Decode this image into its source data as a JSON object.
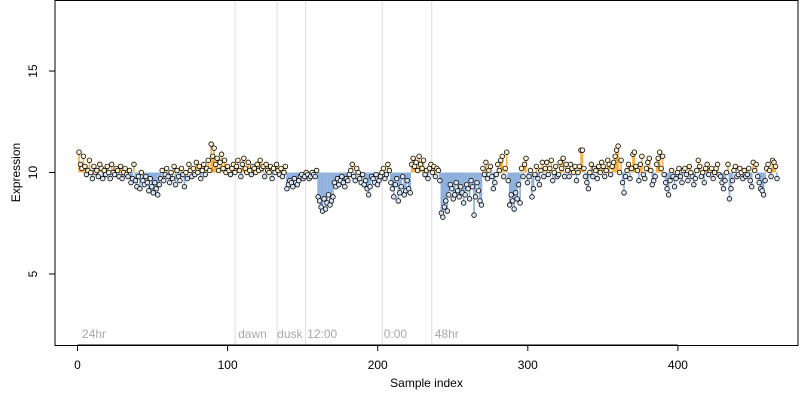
{
  "chart_data": {
    "type": "scatter",
    "title": "",
    "xlabel": "Sample index",
    "ylabel": "Expression",
    "xlim": [
      -15,
      480
    ],
    "ylim": [
      1.5,
      18.5
    ],
    "x_ticks": [
      0,
      100,
      200,
      300,
      400
    ],
    "y_ticks": [
      5,
      10,
      15
    ],
    "x_tick_labels": [
      "0",
      "100",
      "200",
      "300",
      "400"
    ],
    "y_tick_labels": [
      "5",
      "10",
      "15"
    ],
    "grid": false,
    "legend": "none",
    "colors": {
      "above": "#f4b14a",
      "below": "#8fb0dc",
      "point_above": "#fff2cf",
      "point_below": "#dbe7f7",
      "point_edge": "#000000",
      "divider": "#dddddd",
      "annotation": "#a8a8a8"
    },
    "baseline": 10,
    "dividers": [
      105,
      133,
      152,
      203,
      236
    ],
    "annotations": [
      {
        "x": 3,
        "text": "24hr"
      },
      {
        "x": 107,
        "text": "dawn"
      },
      {
        "x": 133,
        "text": "dusk"
      },
      {
        "x": 153,
        "text": "12:00"
      },
      {
        "x": 204,
        "text": "0:00"
      },
      {
        "x": 238,
        "text": "48hr"
      }
    ],
    "series": [
      {
        "x_start": 1,
        "x_end": 466,
        "y": [
          11.0,
          10.4,
          10.2,
          10.8,
          10.3,
          9.9,
          10.1,
          10.6,
          10.0,
          9.7,
          10.3,
          10.0,
          10.1,
          9.8,
          10.4,
          10.2,
          9.7,
          10.1,
          9.9,
          10.3,
          10.0,
          9.7,
          10.4,
          10.0,
          9.9,
          10.2,
          10.1,
          9.8,
          10.3,
          9.7,
          10.0,
          10.2,
          9.9,
          9.8,
          10.1,
          9.5,
          9.7,
          10.4,
          9.6,
          9.3,
          9.8,
          9.2,
          10.0,
          9.6,
          9.4,
          9.8,
          9.5,
          9.1,
          9.7,
          9.3,
          9.0,
          9.5,
          9.2,
          8.9,
          9.4,
          9.7,
          10.1,
          9.6,
          9.9,
          10.2,
          9.8,
          9.5,
          10.0,
          9.7,
          10.3,
          9.4,
          10.1,
          9.8,
          9.6,
          10.2,
          9.9,
          9.3,
          10.0,
          9.7,
          10.4,
          10.1,
          9.8,
          10.2,
          9.9,
          10.5,
          10.0,
          10.3,
          9.7,
          10.1,
          10.4,
          9.9,
          10.2,
          10.6,
          10.1,
          11.4,
          10.8,
          11.2,
          10.4,
          10.7,
          10.1,
          10.5,
          10.9,
          10.2,
          10.6,
          10.0,
          10.3,
          10.1,
          9.9,
          10.2,
          10.4,
          10.0,
          10.3,
          10.6,
          10.1,
          9.8,
          10.4,
          10.7,
          10.2,
          10.0,
          10.5,
          10.1,
          9.9,
          10.3,
          10.2,
          10.0,
          10.4,
          10.1,
          10.6,
          10.2,
          10.3,
          9.8,
          10.4,
          10.1,
          10.0,
          10.3,
          9.7,
          10.2,
          10.0,
          10.4,
          10.1,
          9.9,
          10.2,
          9.8,
          10.0,
          10.3,
          9.2,
          9.4,
          9.6,
          9.5,
          9.3,
          9.7,
          9.5,
          9.4,
          9.6,
          9.8,
          9.9,
          9.7,
          9.8,
          10.0,
          9.9,
          9.7,
          9.8,
          10.0,
          9.9,
          9.8,
          10.1,
          8.8,
          8.6,
          8.3,
          8.1,
          8.7,
          8.2,
          8.5,
          8.9,
          8.4,
          8.6,
          8.8,
          9.5,
          9.3,
          9.7,
          9.4,
          9.6,
          9.8,
          9.5,
          9.3,
          9.7,
          9.6,
          9.9,
          10.1,
          10.4,
          9.8,
          9.6,
          10.2,
          10.0,
          9.7,
          9.5,
          9.9,
          9.4,
          9.6,
          9.2,
          8.9,
          9.3,
          9.8,
          9.7,
          9.5,
          9.9,
          9.4,
          9.6,
          9.8,
          10.0,
          10.2,
          9.7,
          9.9,
          10.4,
          10.1,
          9.5,
          9.2,
          8.8,
          9.4,
          9.7,
          8.6,
          9.0,
          9.3,
          9.8,
          8.9,
          9.1,
          9.6,
          9.2,
          9.0,
          10.4,
          10.7,
          10.3,
          10.5,
          10.1,
          10.8,
          10.4,
          10.2,
          10.6,
          9.9,
          10.1,
          9.7,
          10.2,
          10.4,
          10.0,
          10.3,
          9.8,
          10.2,
          10.1,
          9.6,
          8.0,
          7.8,
          8.3,
          8.6,
          8.1,
          8.9,
          9.4,
          9.2,
          8.7,
          8.9,
          9.5,
          9.1,
          8.8,
          9.3,
          9.0,
          8.5,
          8.9,
          9.4,
          9.2,
          8.7,
          9.6,
          9.3,
          7.9,
          8.8,
          9.5,
          9.1,
          8.6,
          8.4,
          10.2,
          9.9,
          10.5,
          9.7,
          10.1,
          10.3,
          9.8,
          9.2,
          9.5,
          9.9,
          10.4,
          10.1,
          10.6,
          10.8,
          9.8,
          10.2,
          11.0,
          9.6,
          8.4,
          8.9,
          8.6,
          8.2,
          9.0,
          8.7,
          9.4,
          8.5,
          10.2,
          9.8,
          10.4,
          10.7,
          9.5,
          9.8,
          10.1,
          8.8,
          9.2,
          9.9,
          10.3,
          9.7,
          9.4,
          10.1,
          10.5,
          9.8,
          10.2,
          10.5,
          9.9,
          10.2,
          10.6,
          9.6,
          10.0,
          10.3,
          9.8,
          9.9,
          10.5,
          10.2,
          10.7,
          9.8,
          10.4,
          10.1,
          9.8,
          10.4,
          10.2,
          10.0,
          10.3,
          9.6,
          10.0,
          10.3,
          11.1,
          11.1,
          10.2,
          9.8,
          9.5,
          9.2,
          10.0,
          10.4,
          9.8,
          10.2,
          10.1,
          9.7,
          10.3,
          10.0,
          10.5,
          10.3,
          9.8,
          10.1,
          10.6,
          10.4,
          9.9,
          10.3,
          10.5,
          10.8,
          11.1,
          11.3,
          10.0,
          10.6,
          9.5,
          9.0,
          9.8,
          10.1,
          10.4,
          9.7,
          10.2,
          10.9,
          11.0,
          10.3,
          10.1,
          9.6,
          10.4,
          10.8,
          9.9,
          9.7,
          10.2,
          10.5,
          10.7,
          10.1,
          9.4,
          9.6,
          9.8,
          10.4,
          10.7,
          11.0,
          10.2,
          10.8,
          9.9,
          9.5,
          9.2,
          8.9,
          9.6,
          10.1,
          9.8,
          9.3,
          9.7,
          10.0,
          10.2,
          9.8,
          9.5,
          10.1,
          10.2,
          9.9,
          9.6,
          10.3,
          10.0,
          9.8,
          9.4,
          9.7,
          10.1,
          10.6,
          10.3,
          9.8,
          10.0,
          9.5,
          10.2,
          10.4,
          9.9,
          10.1,
          10.2,
          9.7,
          10.0,
          10.2,
          10.4,
          9.9,
          9.8,
          9.5,
          9.2,
          9.6,
          10.0,
          10.4,
          8.7,
          9.2,
          9.6,
          10.1,
          10.3,
          9.8,
          9.9,
          10.2,
          10.0,
          9.7,
          10.1,
          9.8,
          9.9,
          10.2,
          9.6,
          9.3,
          10.5,
          10.1,
          10.4,
          9.8,
          9.5,
          9.2,
          9.1,
          8.9,
          9.6,
          10.2,
          10.4,
          10.1,
          9.8,
          10.6,
          10.5,
          10.3,
          9.7
        ]
      }
    ]
  }
}
